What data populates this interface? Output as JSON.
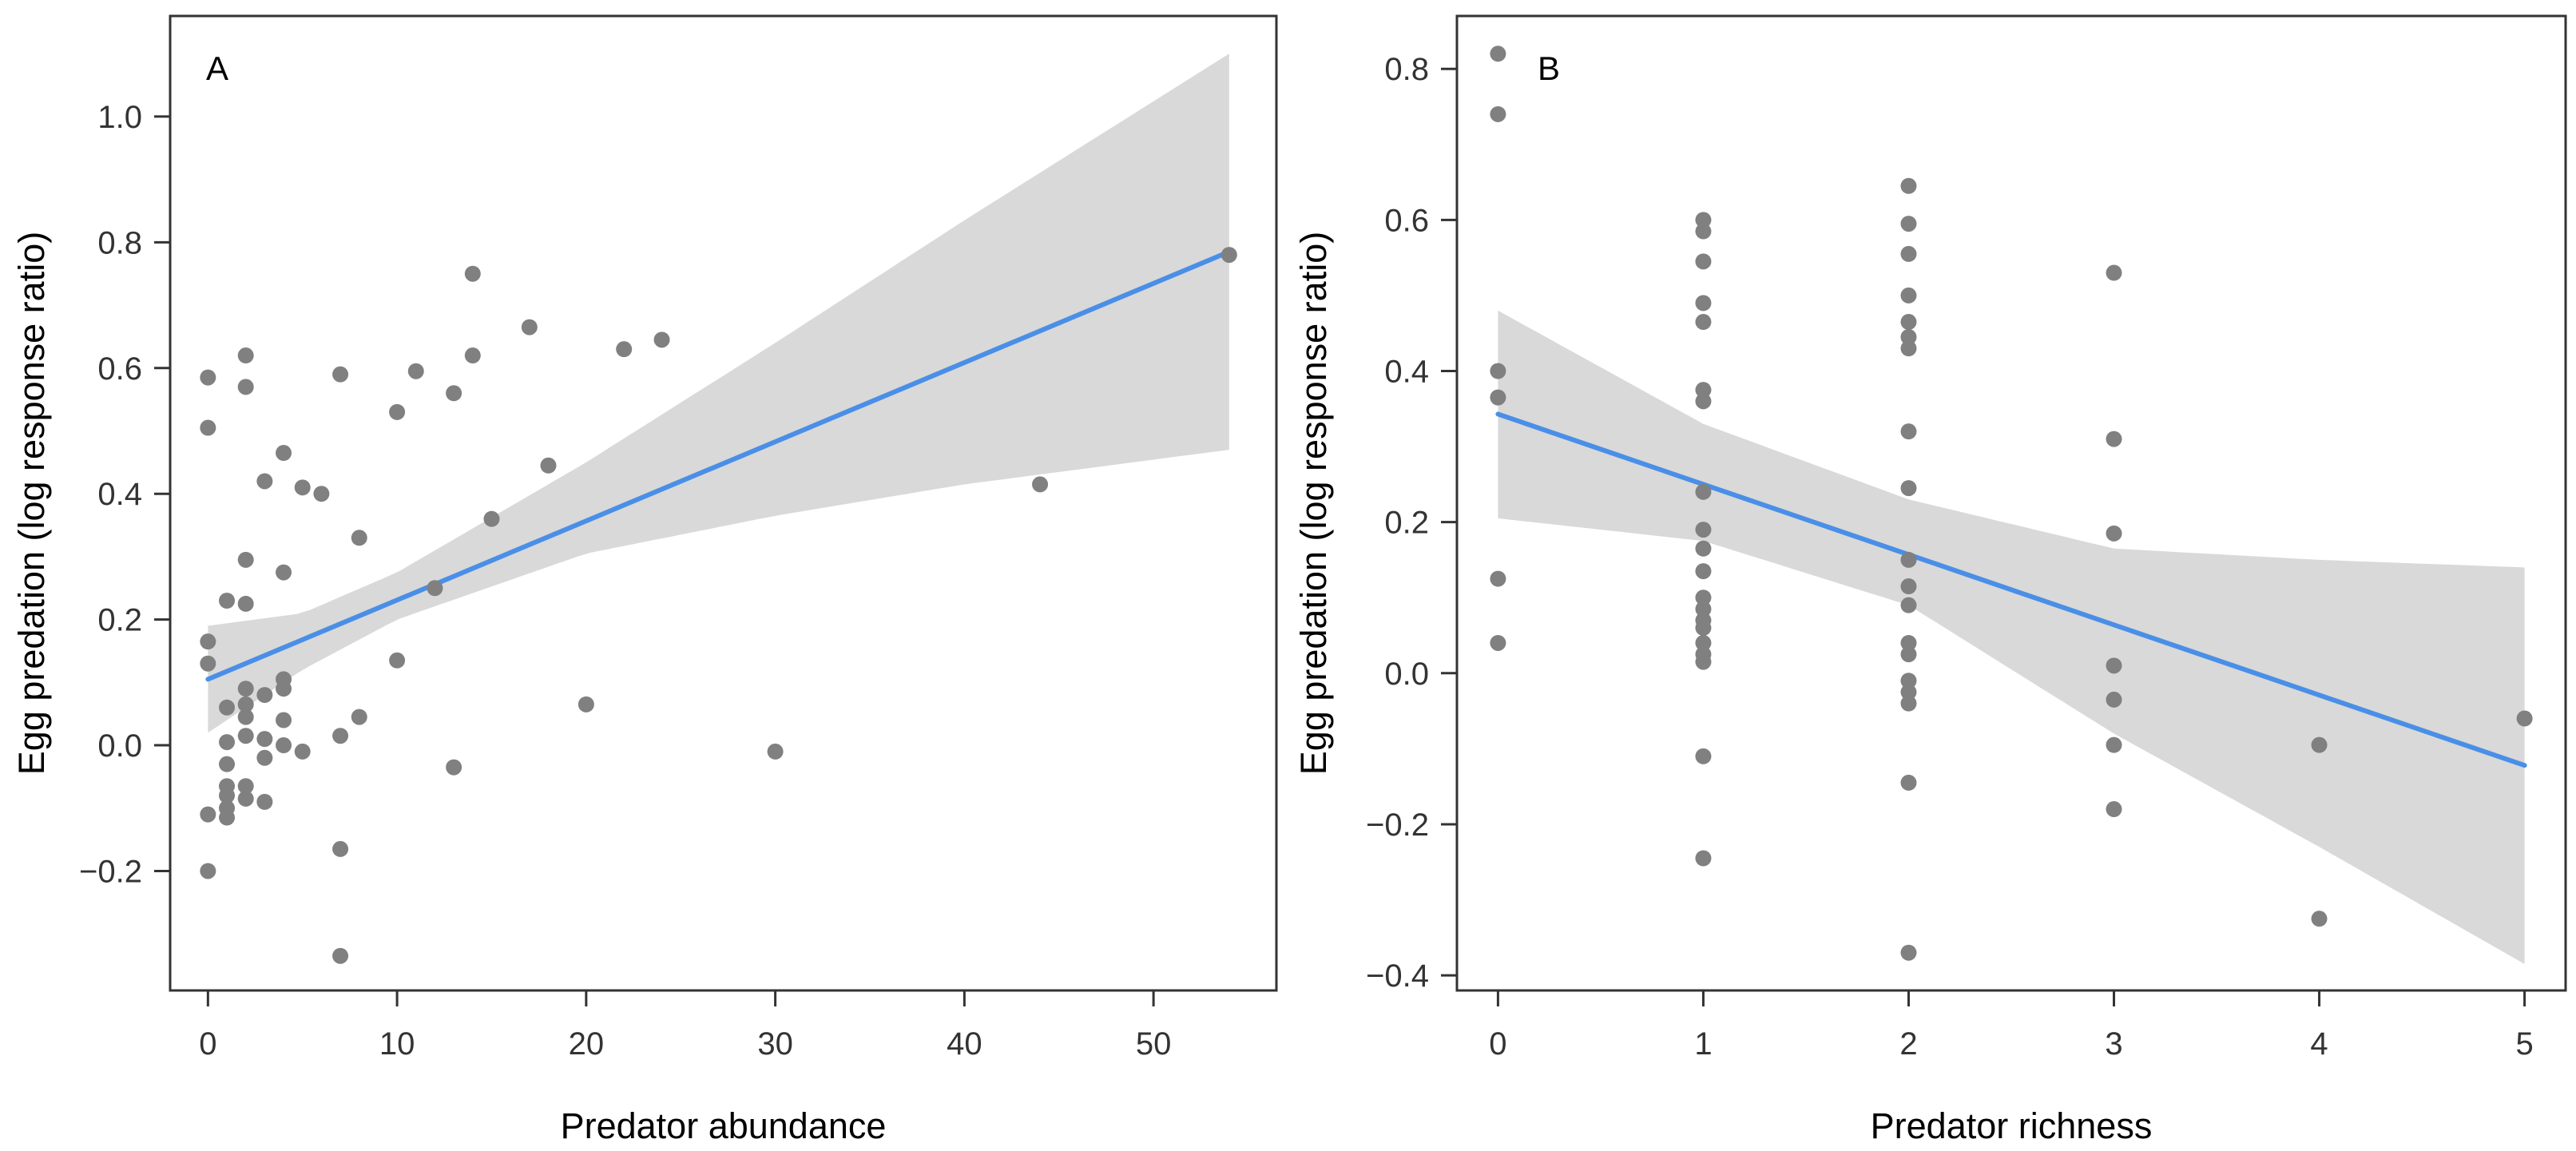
{
  "chart_data": [
    {
      "type": "scatter",
      "panel_label": "A",
      "xlabel": "Predator abundance",
      "ylabel": "Egg predation (log response ratio)",
      "xlim": [
        -2,
        56.5
      ],
      "ylim": [
        -0.39,
        1.16
      ],
      "xticks": [
        0,
        10,
        20,
        30,
        40,
        50
      ],
      "xtick_labels": [
        "0",
        "10",
        "20",
        "30",
        "40",
        "50"
      ],
      "yticks": [
        -0.2,
        0,
        0.2,
        0.4,
        0.6,
        0.8,
        1.0
      ],
      "ytick_labels": [
        "−0.2",
        "0.0",
        "0.2",
        "0.4",
        "0.6",
        "0.8",
        "1.0"
      ],
      "point_color": "#808080",
      "fit": {
        "x": [
          0,
          54
        ],
        "y": [
          0.105,
          0.785
        ],
        "color": "#4a8fe7"
      },
      "ci_band": {
        "color": "#d9d9d9",
        "x": [
          0,
          5,
          10,
          20,
          30,
          40,
          54
        ],
        "lower": [
          0.02,
          0.12,
          0.2,
          0.305,
          0.365,
          0.415,
          0.47
        ],
        "upper": [
          0.19,
          0.21,
          0.275,
          0.45,
          0.64,
          0.835,
          1.1
        ]
      },
      "points": [
        [
          0,
          0.585
        ],
        [
          0,
          0.505
        ],
        [
          0,
          0.165
        ],
        [
          0,
          0.13
        ],
        [
          0,
          -0.11
        ],
        [
          0,
          -0.2
        ],
        [
          1,
          0.23
        ],
        [
          1,
          0.06
        ],
        [
          1,
          0.005
        ],
        [
          1,
          -0.03
        ],
        [
          1,
          -0.065
        ],
        [
          1,
          -0.08
        ],
        [
          1,
          -0.1
        ],
        [
          1,
          -0.115
        ],
        [
          2,
          0.62
        ],
        [
          2,
          0.57
        ],
        [
          2,
          0.295
        ],
        [
          2,
          0.225
        ],
        [
          2,
          0.09
        ],
        [
          2,
          0.065
        ],
        [
          2,
          0.045
        ],
        [
          2,
          0.015
        ],
        [
          2,
          -0.065
        ],
        [
          2,
          -0.085
        ],
        [
          3,
          0.42
        ],
        [
          3,
          0.08
        ],
        [
          3,
          0.01
        ],
        [
          3,
          -0.02
        ],
        [
          3,
          -0.09
        ],
        [
          4,
          0.465
        ],
        [
          4,
          0.275
        ],
        [
          4,
          0.105
        ],
        [
          4,
          0.09
        ],
        [
          4,
          0.04
        ],
        [
          4,
          0.0
        ],
        [
          5,
          0.41
        ],
        [
          5,
          -0.01
        ],
        [
          6,
          0.4
        ],
        [
          7,
          0.59
        ],
        [
          7,
          0.015
        ],
        [
          7,
          -0.165
        ],
        [
          7,
          -0.335
        ],
        [
          8,
          0.33
        ],
        [
          8,
          0.045
        ],
        [
          10,
          0.53
        ],
        [
          10,
          0.135
        ],
        [
          11,
          0.595
        ],
        [
          12,
          0.25
        ],
        [
          13,
          0.56
        ],
        [
          13,
          -0.035
        ],
        [
          14,
          0.75
        ],
        [
          14,
          0.62
        ],
        [
          15,
          0.36
        ],
        [
          17,
          0.665
        ],
        [
          18,
          0.445
        ],
        [
          20,
          0.065
        ],
        [
          22,
          0.63
        ],
        [
          24,
          0.645
        ],
        [
          30,
          -0.01
        ],
        [
          44,
          0.415
        ],
        [
          54,
          0.78
        ]
      ]
    },
    {
      "type": "scatter",
      "panel_label": "B",
      "xlabel": "Predator richness",
      "ylabel": "Egg predation (log response ratio)",
      "xlim": [
        -0.2,
        5.2
      ],
      "ylim": [
        -0.42,
        0.87
      ],
      "xticks": [
        0,
        1,
        2,
        3,
        4,
        5
      ],
      "xtick_labels": [
        "0",
        "1",
        "2",
        "3",
        "4",
        "5"
      ],
      "yticks": [
        -0.4,
        -0.2,
        0,
        0.2,
        0.4,
        0.6,
        0.8
      ],
      "ytick_labels": [
        "−0.4",
        "−0.2",
        "0.0",
        "0.2",
        "0.4",
        "0.6",
        "0.8"
      ],
      "point_color": "#808080",
      "fit": {
        "x": [
          0,
          5
        ],
        "y": [
          0.343,
          -0.122
        ],
        "color": "#4a8fe7"
      },
      "ci_band": {
        "color": "#d9d9d9",
        "x": [
          0,
          1,
          2,
          3,
          4,
          5
        ],
        "lower": [
          0.205,
          0.175,
          0.09,
          -0.08,
          -0.23,
          -0.385
        ],
        "upper": [
          0.48,
          0.33,
          0.23,
          0.165,
          0.15,
          0.14
        ]
      },
      "points": [
        [
          0,
          0.82
        ],
        [
          0,
          0.74
        ],
        [
          0,
          0.4
        ],
        [
          0,
          0.365
        ],
        [
          0,
          0.125
        ],
        [
          0,
          0.04
        ],
        [
          1,
          0.6
        ],
        [
          1,
          0.585
        ],
        [
          1,
          0.545
        ],
        [
          1,
          0.49
        ],
        [
          1,
          0.465
        ],
        [
          1,
          0.375
        ],
        [
          1,
          0.36
        ],
        [
          1,
          0.24
        ],
        [
          1,
          0.19
        ],
        [
          1,
          0.165
        ],
        [
          1,
          0.135
        ],
        [
          1,
          0.1
        ],
        [
          1,
          0.085
        ],
        [
          1,
          0.07
        ],
        [
          1,
          0.06
        ],
        [
          1,
          0.04
        ],
        [
          1,
          0.025
        ],
        [
          1,
          0.015
        ],
        [
          1,
          -0.11
        ],
        [
          1,
          -0.245
        ],
        [
          2,
          0.645
        ],
        [
          2,
          0.595
        ],
        [
          2,
          0.555
        ],
        [
          2,
          0.5
        ],
        [
          2,
          0.465
        ],
        [
          2,
          0.445
        ],
        [
          2,
          0.43
        ],
        [
          2,
          0.32
        ],
        [
          2,
          0.245
        ],
        [
          2,
          0.15
        ],
        [
          2,
          0.115
        ],
        [
          2,
          0.09
        ],
        [
          2,
          0.04
        ],
        [
          2,
          0.025
        ],
        [
          2,
          -0.01
        ],
        [
          2,
          -0.025
        ],
        [
          2,
          -0.04
        ],
        [
          2,
          -0.145
        ],
        [
          2,
          -0.37
        ],
        [
          3,
          0.53
        ],
        [
          3,
          0.31
        ],
        [
          3,
          0.185
        ],
        [
          3,
          0.01
        ],
        [
          3,
          -0.035
        ],
        [
          3,
          -0.095
        ],
        [
          3,
          -0.18
        ],
        [
          4,
          -0.095
        ],
        [
          4,
          -0.325
        ],
        [
          5,
          -0.06
        ]
      ]
    }
  ]
}
